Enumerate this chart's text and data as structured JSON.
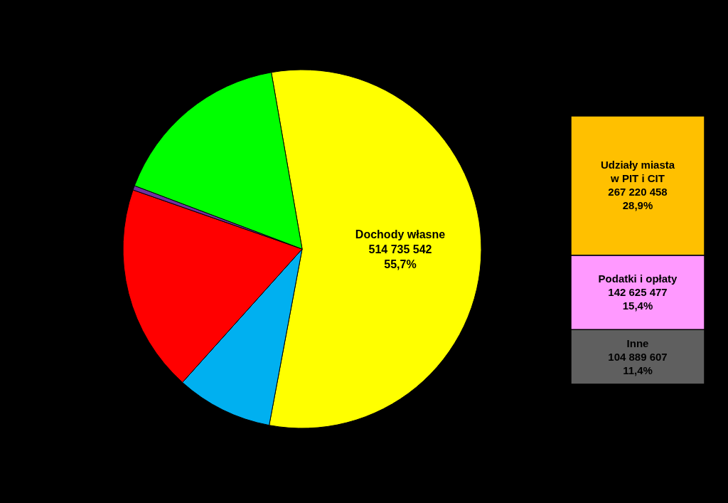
{
  "chart_data": [
    {
      "type": "pie",
      "categories": [
        "Dochody własne",
        null,
        null,
        null,
        null
      ],
      "values": [
        55.7,
        8.7,
        18.7,
        0.4,
        16.5
      ],
      "colors": [
        "#ffff00",
        "#00b0f0",
        "#ff0000",
        "#7030a0",
        "#00ff00"
      ],
      "value_labels": [
        "514 735 542\n55,7%",
        null,
        null,
        null,
        null
      ]
    },
    {
      "type": "bar",
      "stacked": true,
      "categories": [
        null
      ],
      "series": [
        {
          "name": "Inne",
          "color": "#5f5f5f",
          "values": [
            104889607
          ],
          "value_labels": [
            "104 889 607\n11,4%"
          ]
        },
        {
          "name": "Podatki i opłaty",
          "color": "#ff99ff",
          "values": [
            142625477
          ],
          "value_labels": [
            "142 625 477\n15,4%"
          ]
        },
        {
          "name": "Udziały miasta w PIT i CIT",
          "color": "#ffc000",
          "values": [
            267220458
          ],
          "value_labels": [
            "267 220 458\n28,9%"
          ]
        }
      ]
    }
  ]
}
